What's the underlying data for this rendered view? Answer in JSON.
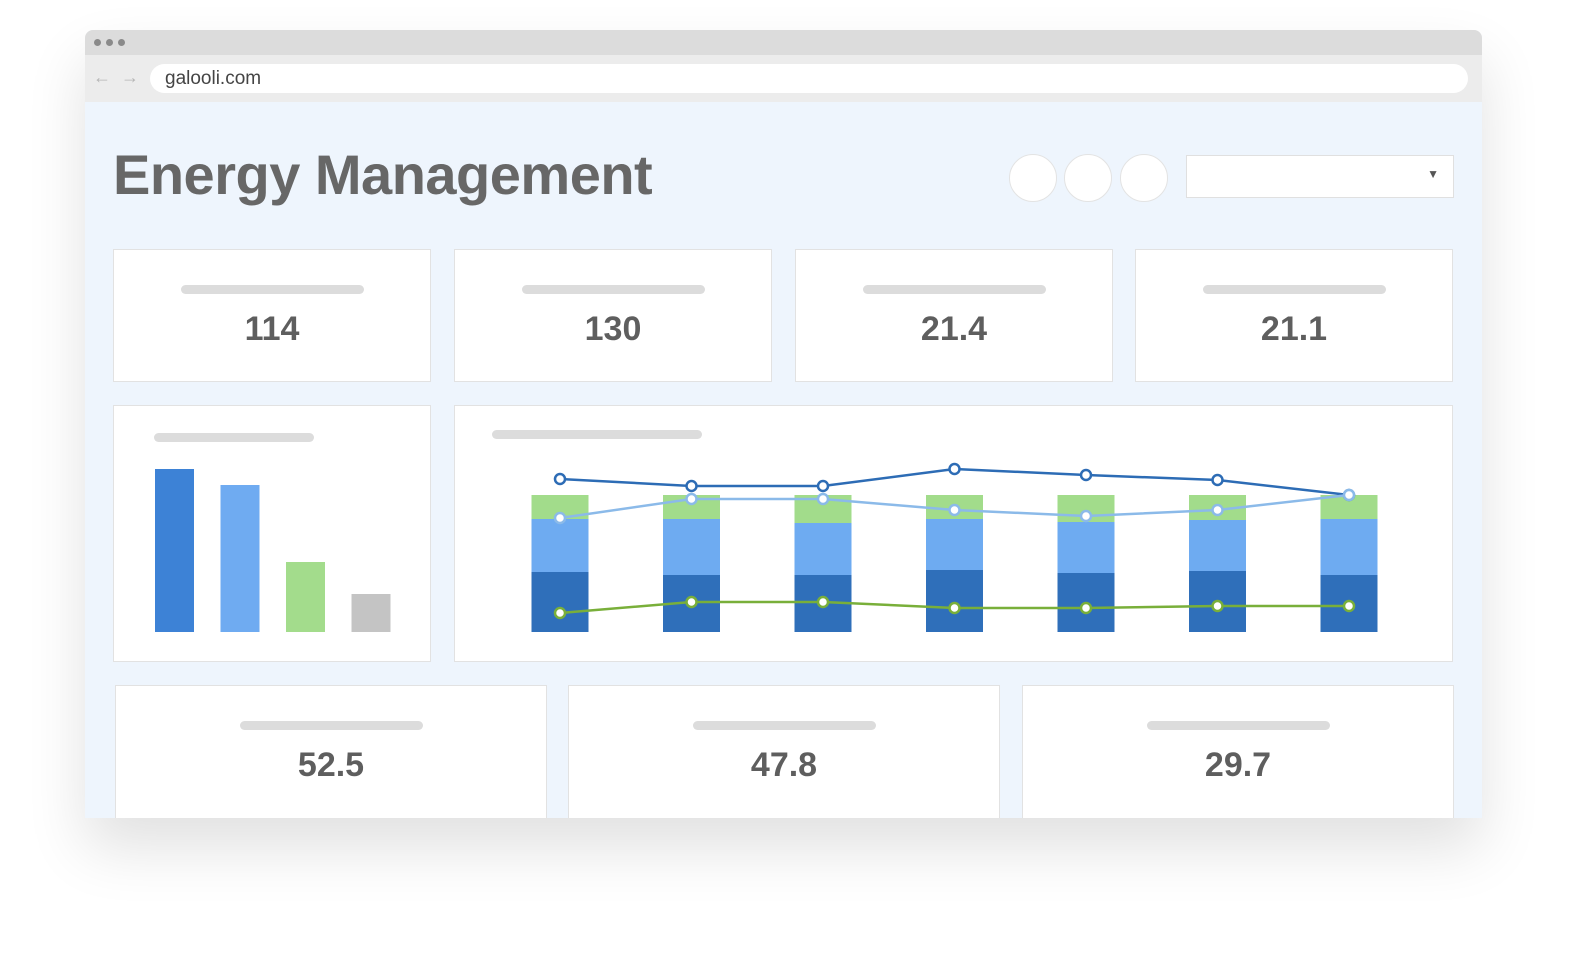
{
  "address": "galooli.com",
  "title": "Energy Management",
  "kpis_top": [
    114,
    130,
    21.4,
    21.1
  ],
  "kpis_bottom": [
    52.5,
    47.8,
    29.7
  ],
  "chart_data": [
    {
      "type": "bar",
      "values": [
        163,
        147,
        70,
        38
      ],
      "colors": [
        "#3d82d6",
        "#6fabf1",
        "#a3dc8c",
        "#c4c4c4"
      ]
    },
    {
      "type": "stacked_bar_line",
      "categories": [
        null,
        null,
        null,
        null,
        null,
        null,
        null
      ],
      "series": [
        {
          "type": "bar",
          "color": "#2f6fba",
          "values": [
            60,
            57,
            57,
            62,
            59,
            61,
            57
          ]
        },
        {
          "type": "bar",
          "color": "#6eabf1",
          "values": [
            53,
            56,
            52,
            51,
            51,
            51,
            56
          ]
        },
        {
          "type": "bar",
          "color": "#a2dc8b",
          "values": [
            24,
            24,
            28,
            24,
            27,
            25,
            24
          ]
        },
        {
          "type": "line",
          "color": "#2d6cb5",
          "values": [
            153,
            146,
            146,
            163,
            157,
            152,
            137
          ]
        },
        {
          "type": "line",
          "color": "#8bbae9",
          "values": [
            114,
            133,
            133,
            122,
            116,
            122,
            137
          ]
        },
        {
          "type": "line",
          "color": "#79af3a",
          "values": [
            19,
            30,
            30,
            24,
            24,
            26,
            26
          ]
        }
      ]
    }
  ]
}
